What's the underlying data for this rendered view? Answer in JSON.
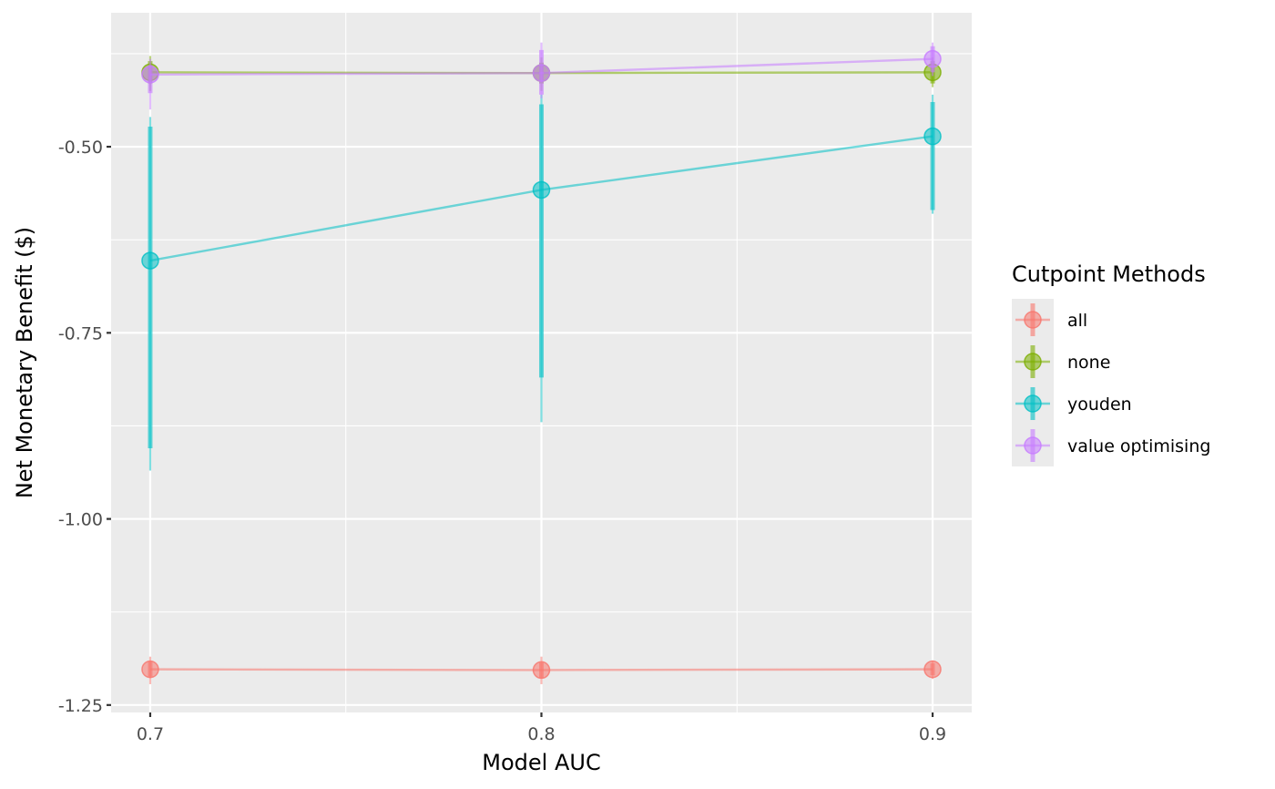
{
  "chart_data": {
    "type": "line",
    "title": "",
    "xlabel": "Model AUC",
    "ylabel": "Net Monetary Benefit ($)",
    "x": [
      0.7,
      0.8,
      0.9
    ],
    "x_ticks": [
      "0.7",
      "0.8",
      "0.9"
    ],
    "y_ticks": [
      "-0.50",
      "-0.75",
      "-1.00",
      "-1.25"
    ],
    "xlim": [
      0.69,
      0.91
    ],
    "ylim": [
      -1.26,
      -0.32
    ],
    "grid": true,
    "legend": {
      "title": "Cutpoint Methods",
      "placement": "right"
    },
    "series": [
      {
        "name": "all",
        "color": "#F8766D",
        "values": [
          -1.202,
          -1.203,
          -1.202
        ],
        "inner": [
          [
            -1.212,
            -1.192
          ],
          [
            -1.213,
            -1.193
          ],
          [
            -1.21,
            -1.194
          ]
        ],
        "outer": [
          [
            -1.222,
            -1.185
          ],
          [
            -1.222,
            -1.185
          ],
          [
            -1.215,
            -1.19
          ]
        ]
      },
      {
        "name": "none",
        "color": "#7CAE00",
        "values": [
          -0.4,
          -0.401,
          -0.4
        ],
        "inner": [
          [
            -0.415,
            -0.385
          ],
          [
            -0.415,
            -0.387
          ],
          [
            -0.415,
            -0.385
          ]
        ],
        "outer": [
          [
            -0.425,
            -0.378
          ],
          [
            -0.425,
            -0.38
          ],
          [
            -0.42,
            -0.38
          ]
        ]
      },
      {
        "name": "youden",
        "color": "#00BFC4",
        "values": [
          -0.653,
          -0.558,
          -0.486
        ],
        "inner": [
          [
            -0.905,
            -0.473
          ],
          [
            -0.81,
            -0.443
          ],
          [
            -0.585,
            -0.44
          ]
        ],
        "outer": [
          [
            -0.935,
            -0.46
          ],
          [
            -0.87,
            -0.43
          ],
          [
            -0.59,
            -0.43
          ]
        ]
      },
      {
        "name": "value optimising",
        "color": "#C77CFF",
        "values": [
          -0.403,
          -0.401,
          -0.382
        ],
        "inner": [
          [
            -0.428,
            -0.39
          ],
          [
            -0.43,
            -0.37
          ],
          [
            -0.4,
            -0.365
          ]
        ],
        "outer": [
          [
            -0.45,
            -0.382
          ],
          [
            -0.435,
            -0.36
          ],
          [
            -0.405,
            -0.36
          ]
        ]
      }
    ]
  }
}
